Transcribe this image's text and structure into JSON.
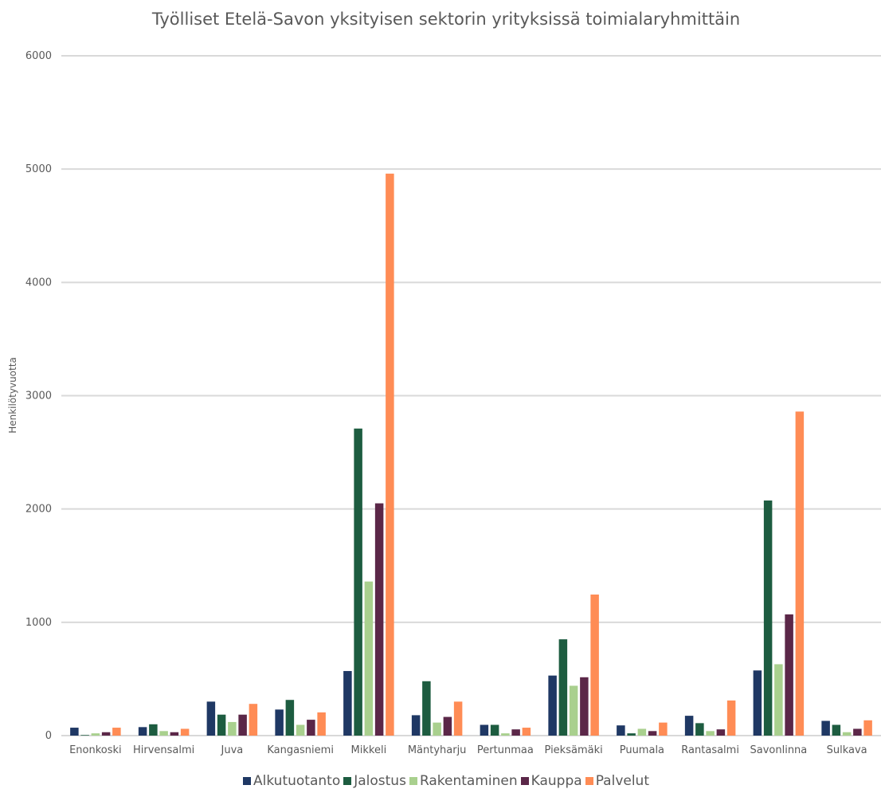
{
  "chart_data": {
    "type": "bar",
    "title": "Työlliset Etelä-Savon yksityisen sektorin yrityksissä toimialaryhmittäin",
    "xlabel": "",
    "ylabel": "Henkilötyvuotta",
    "ylim": [
      0,
      6000
    ],
    "yticks": [
      0,
      1000,
      2000,
      3000,
      4000,
      5000,
      6000
    ],
    "grid": true,
    "legend_position": "bottom",
    "categories": [
      "Enonkoski",
      "Hirvensalmi",
      "Juva",
      "Kangasniemi",
      "Mikkeli",
      "Mäntyharju",
      "Pertunmaa",
      "Pieksämäki",
      "Puumala",
      "Rantasalmi",
      "Savonlinna",
      "Sulkava"
    ],
    "series": [
      {
        "name": "Alkutuotanto",
        "color": "#1f3864",
        "values": [
          70,
          75,
          300,
          230,
          570,
          180,
          95,
          530,
          90,
          175,
          575,
          130
        ]
      },
      {
        "name": "Jalostus",
        "color": "#1d5c40",
        "values": [
          5,
          100,
          185,
          315,
          2710,
          480,
          95,
          850,
          20,
          110,
          2075,
          95
        ]
      },
      {
        "name": "Rakentaminen",
        "color": "#a9d08e",
        "values": [
          20,
          40,
          120,
          95,
          1360,
          115,
          20,
          440,
          60,
          40,
          630,
          30
        ]
      },
      {
        "name": "Kauppa",
        "color": "#5b2748",
        "values": [
          30,
          30,
          185,
          140,
          2050,
          165,
          55,
          515,
          40,
          55,
          1070,
          60
        ]
      },
      {
        "name": "Palvelut",
        "color": "#ff8c55",
        "values": [
          70,
          60,
          280,
          205,
          4960,
          300,
          70,
          1245,
          115,
          310,
          2860,
          135
        ]
      }
    ]
  }
}
